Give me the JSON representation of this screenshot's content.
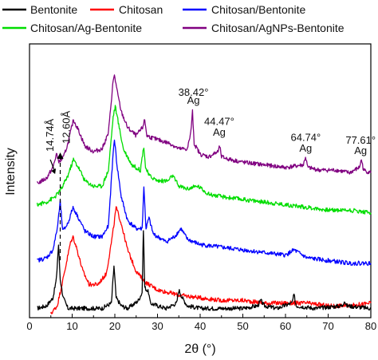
{
  "chart_data": {
    "type": "line",
    "xlabel": "2θ (°)",
    "ylabel": "Intensity",
    "xlim": [
      0,
      80
    ],
    "x_ticks": [
      "0",
      "10",
      "20",
      "30",
      "40",
      "50",
      "60",
      "70",
      "80"
    ],
    "grid": false,
    "legend_position": "top",
    "series": [
      {
        "name": "Bentonite",
        "color": "#000000",
        "points": [
          [
            1.8,
            0.02
          ],
          [
            4,
            0.03
          ],
          [
            5.5,
            0.06
          ],
          [
            6.3,
            0.13
          ],
          [
            6.8,
            0.26
          ],
          [
            7.2,
            0.13
          ],
          [
            7.9,
            0.06
          ],
          [
            9,
            0.02
          ],
          [
            12,
            0.02
          ],
          [
            15,
            0.02
          ],
          [
            17,
            0.02
          ],
          [
            19.2,
            0.04
          ],
          [
            19.8,
            0.18
          ],
          [
            20.3,
            0.06
          ],
          [
            21.5,
            0.03
          ],
          [
            23,
            0.02
          ],
          [
            24.8,
            0.04
          ],
          [
            25.5,
            0.05
          ],
          [
            26.4,
            0.08
          ],
          [
            26.7,
            0.32
          ],
          [
            27.0,
            0.1
          ],
          [
            27.9,
            0.08
          ],
          [
            28.3,
            0.04
          ],
          [
            30,
            0.03
          ],
          [
            32,
            0.02
          ],
          [
            34.5,
            0.04
          ],
          [
            35.0,
            0.09
          ],
          [
            35.8,
            0.06
          ],
          [
            37,
            0.03
          ],
          [
            40,
            0.02
          ],
          [
            45,
            0.02
          ],
          [
            50,
            0.02
          ],
          [
            53.5,
            0.03
          ],
          [
            54.2,
            0.05
          ],
          [
            55,
            0.03
          ],
          [
            58,
            0.02
          ],
          [
            61.5,
            0.04
          ],
          [
            62.0,
            0.07
          ],
          [
            62.5,
            0.03
          ],
          [
            67,
            0.02
          ],
          [
            73.3,
            0.03
          ],
          [
            73.8,
            0.05
          ],
          [
            74.3,
            0.03
          ],
          [
            80,
            0.02
          ]
        ]
      },
      {
        "name": "Chitosan",
        "color": "#ff0000",
        "points": [
          [
            5,
            0.0
          ],
          [
            6.5,
            0.03
          ],
          [
            8,
            0.14
          ],
          [
            9.5,
            0.26
          ],
          [
            10.2,
            0.29
          ],
          [
            11,
            0.25
          ],
          [
            12.5,
            0.16
          ],
          [
            14,
            0.11
          ],
          [
            16,
            0.11
          ],
          [
            18,
            0.15
          ],
          [
            19.5,
            0.3
          ],
          [
            20.3,
            0.4
          ],
          [
            21.5,
            0.34
          ],
          [
            23,
            0.24
          ],
          [
            25,
            0.16
          ],
          [
            27,
            0.12
          ],
          [
            30,
            0.09
          ],
          [
            35,
            0.07
          ],
          [
            40,
            0.06
          ],
          [
            45,
            0.05
          ],
          [
            50,
            0.05
          ],
          [
            55,
            0.04
          ],
          [
            60,
            0.04
          ],
          [
            65,
            0.04
          ],
          [
            70,
            0.03
          ],
          [
            75,
            0.03
          ],
          [
            80,
            0.04
          ]
        ]
      },
      {
        "name": "Chitosan/Bentonite",
        "color": "#0000ff",
        "points": [
          [
            1.8,
            0.2
          ],
          [
            4,
            0.21
          ],
          [
            5.5,
            0.24
          ],
          [
            6.5,
            0.32
          ],
          [
            7.2,
            0.42
          ],
          [
            7.8,
            0.31
          ],
          [
            9,
            0.34
          ],
          [
            10.2,
            0.4
          ],
          [
            11.5,
            0.36
          ],
          [
            13,
            0.31
          ],
          [
            15,
            0.29
          ],
          [
            17,
            0.29
          ],
          [
            18.5,
            0.33
          ],
          [
            19.5,
            0.58
          ],
          [
            19.9,
            0.66
          ],
          [
            20.5,
            0.56
          ],
          [
            21.5,
            0.44
          ],
          [
            23,
            0.35
          ],
          [
            25,
            0.32
          ],
          [
            26.4,
            0.32
          ],
          [
            26.8,
            0.48
          ],
          [
            27.3,
            0.32
          ],
          [
            28,
            0.36
          ],
          [
            29,
            0.3
          ],
          [
            32,
            0.27
          ],
          [
            34,
            0.29
          ],
          [
            35.5,
            0.32
          ],
          [
            37,
            0.28
          ],
          [
            40,
            0.26
          ],
          [
            45,
            0.25
          ],
          [
            50,
            0.24
          ],
          [
            55,
            0.23
          ],
          [
            60,
            0.22
          ],
          [
            62,
            0.24
          ],
          [
            65,
            0.21
          ],
          [
            70,
            0.2
          ],
          [
            75,
            0.19
          ],
          [
            80,
            0.19
          ]
        ]
      },
      {
        "name": "Chitosan/Ag-Bentonite",
        "color": "#00dd00",
        "points": [
          [
            1.8,
            0.41
          ],
          [
            4,
            0.42
          ],
          [
            6,
            0.44
          ],
          [
            7.5,
            0.47
          ],
          [
            9,
            0.52
          ],
          [
            10.3,
            0.58
          ],
          [
            11.5,
            0.55
          ],
          [
            13,
            0.5
          ],
          [
            15,
            0.48
          ],
          [
            17,
            0.48
          ],
          [
            18.5,
            0.54
          ],
          [
            19.6,
            0.74
          ],
          [
            20.1,
            0.78
          ],
          [
            20.8,
            0.72
          ],
          [
            22,
            0.62
          ],
          [
            24,
            0.56
          ],
          [
            26,
            0.54
          ],
          [
            26.5,
            0.6
          ],
          [
            26.8,
            0.63
          ],
          [
            27.2,
            0.55
          ],
          [
            28,
            0.52
          ],
          [
            30,
            0.5
          ],
          [
            32.5,
            0.5
          ],
          [
            33.5,
            0.52
          ],
          [
            35,
            0.48
          ],
          [
            37,
            0.47
          ],
          [
            39.5,
            0.48
          ],
          [
            42,
            0.45
          ],
          [
            45,
            0.44
          ],
          [
            50,
            0.43
          ],
          [
            55,
            0.42
          ],
          [
            60,
            0.41
          ],
          [
            65,
            0.4
          ],
          [
            70,
            0.39
          ],
          [
            75,
            0.39
          ],
          [
            80,
            0.38
          ]
        ]
      },
      {
        "name": "Chitosan/AgNPs-Bentonite",
        "color": "#800080",
        "points": [
          [
            1.8,
            0.49
          ],
          [
            4,
            0.51
          ],
          [
            5.5,
            0.55
          ],
          [
            6.3,
            0.6
          ],
          [
            7.0,
            0.57
          ],
          [
            8,
            0.59
          ],
          [
            9,
            0.64
          ],
          [
            10.3,
            0.73
          ],
          [
            11.5,
            0.69
          ],
          [
            13,
            0.63
          ],
          [
            15,
            0.61
          ],
          [
            17,
            0.62
          ],
          [
            18.5,
            0.68
          ],
          [
            19.5,
            0.86
          ],
          [
            19.9,
            0.9
          ],
          [
            20.5,
            0.84
          ],
          [
            21.5,
            0.76
          ],
          [
            23,
            0.7
          ],
          [
            25,
            0.67
          ],
          [
            26.5,
            0.7
          ],
          [
            27,
            0.73
          ],
          [
            27.5,
            0.67
          ],
          [
            29,
            0.66
          ],
          [
            31,
            0.65
          ],
          [
            33,
            0.64
          ],
          [
            35,
            0.62
          ],
          [
            37,
            0.62
          ],
          [
            37.8,
            0.68
          ],
          [
            38.2,
            0.76
          ],
          [
            38.6,
            0.64
          ],
          [
            40,
            0.6
          ],
          [
            42,
            0.59
          ],
          [
            44.2,
            0.61
          ],
          [
            44.6,
            0.63
          ],
          [
            45,
            0.59
          ],
          [
            47,
            0.58
          ],
          [
            50,
            0.57
          ],
          [
            55,
            0.56
          ],
          [
            60,
            0.55
          ],
          [
            64.2,
            0.56
          ],
          [
            64.7,
            0.59
          ],
          [
            65.2,
            0.55
          ],
          [
            68,
            0.54
          ],
          [
            72,
            0.54
          ],
          [
            75,
            0.53
          ],
          [
            77.3,
            0.55
          ],
          [
            77.8,
            0.58
          ],
          [
            78.3,
            0.54
          ],
          [
            80,
            0.53
          ]
        ]
      }
    ],
    "annotations": [
      {
        "text": "38.42°",
        "x": 38.42,
        "y": 0.82
      },
      {
        "text": "Ag",
        "x": 38.42,
        "y": 0.79
      },
      {
        "text": "44.47°",
        "x": 44.47,
        "y": 0.71
      },
      {
        "text": "Ag",
        "x": 44.47,
        "y": 0.67
      },
      {
        "text": "64.74°",
        "x": 64.74,
        "y": 0.65
      },
      {
        "text": "Ag",
        "x": 64.74,
        "y": 0.61
      },
      {
        "text": "77.61°",
        "x": 77.61,
        "y": 0.64
      },
      {
        "text": "Ag",
        "x": 77.61,
        "y": 0.6
      }
    ],
    "d_spacing_labels": [
      {
        "text": "14.74Å",
        "x": 6.0
      },
      {
        "text": "12.60Å",
        "x": 7.2
      }
    ]
  }
}
